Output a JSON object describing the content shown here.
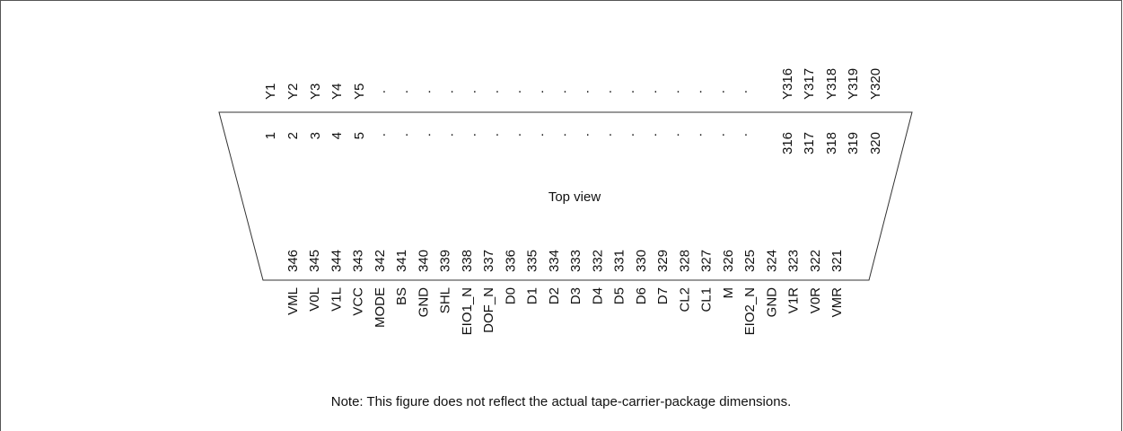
{
  "colors": {
    "line": "#333333",
    "text": "#111111",
    "frame": "#555555"
  },
  "top_signals": [
    "Y1",
    "Y2",
    "Y3",
    "Y4",
    "Y5",
    "Y316",
    "Y317",
    "Y318",
    "Y319",
    "Y320"
  ],
  "top_pins": [
    "1",
    "2",
    "3",
    "4",
    "5",
    "316",
    "317",
    "318",
    "319",
    "320"
  ],
  "ellipsis_dot": ".",
  "package_label": "Top view",
  "bottom_pins": [
    "346",
    "345",
    "344",
    "343",
    "342",
    "341",
    "340",
    "339",
    "338",
    "337",
    "336",
    "335",
    "334",
    "333",
    "332",
    "331",
    "330",
    "329",
    "328",
    "327",
    "326",
    "325",
    "324",
    "323",
    "322",
    "321"
  ],
  "bottom_signals": [
    "VML",
    "V0L",
    "V1L",
    "VCC",
    "MODE",
    "BS",
    "GND",
    "SHL",
    "EIO1_N",
    "DOF_N",
    "D0",
    "D1",
    "D2",
    "D3",
    "D4",
    "D5",
    "D6",
    "D7",
    "CL2",
    "CL1",
    "M",
    "EIO2_N",
    "GND",
    "V1R",
    "V0R",
    "VMR"
  ],
  "note": "Note: This figure does not reflect the actual tape-carrier-package dimensions."
}
